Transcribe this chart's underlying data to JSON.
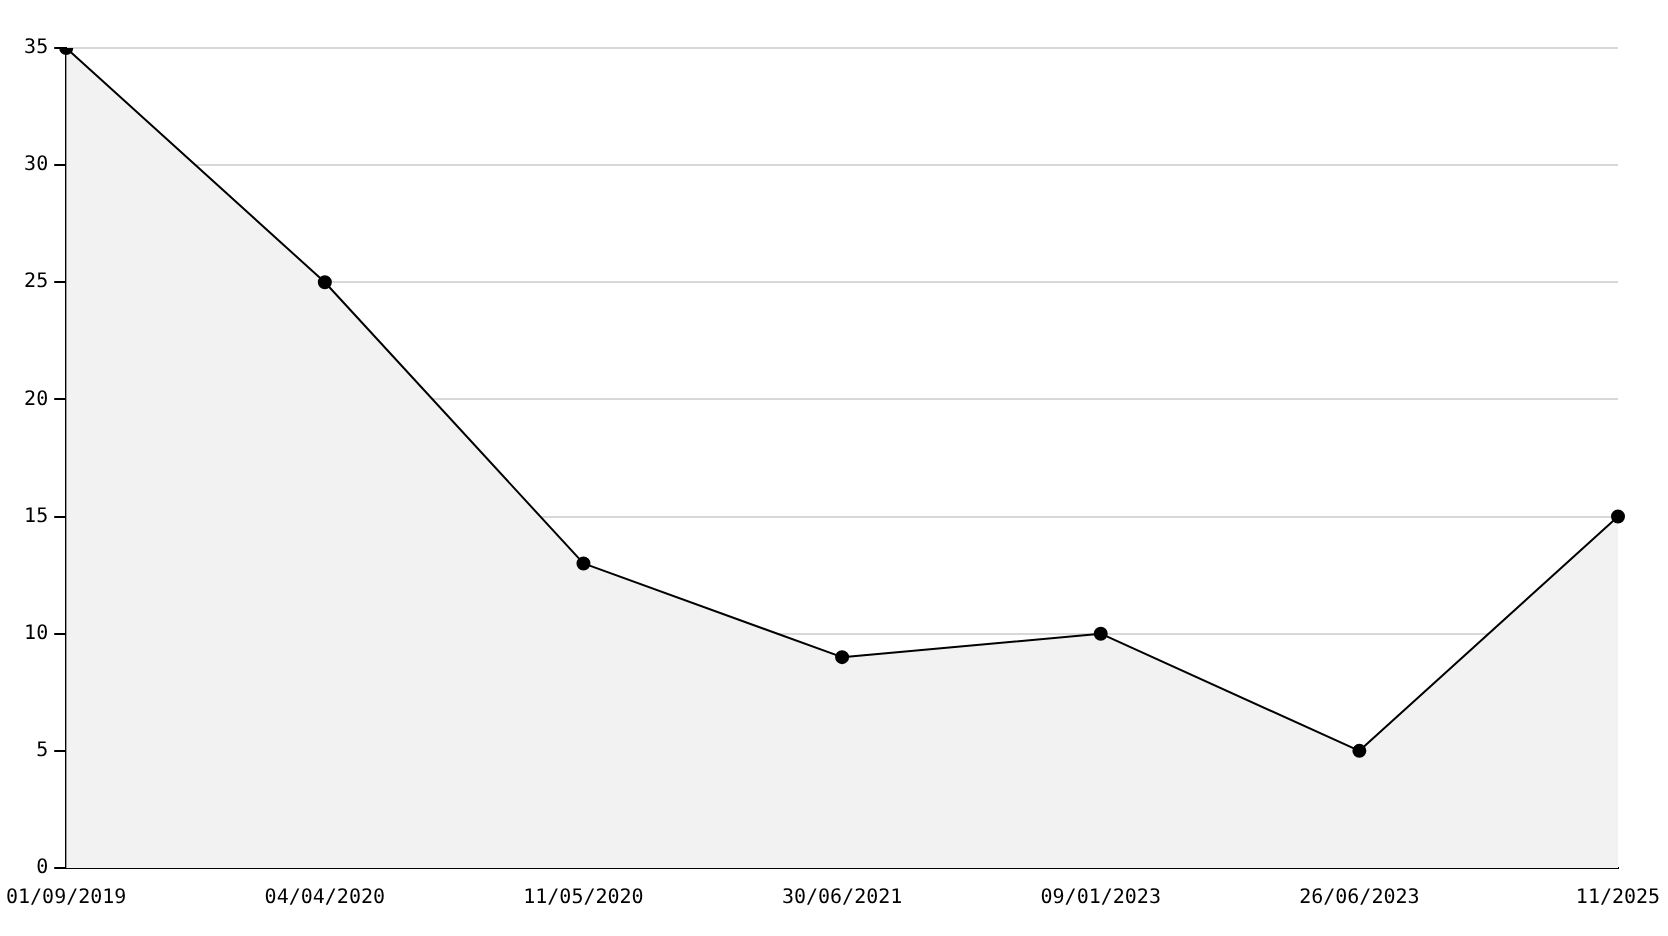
{
  "chart_data": {
    "type": "area",
    "categories": [
      "01/09/2019",
      "04/04/2020",
      "11/05/2020",
      "30/06/2021",
      "09/01/2023",
      "26/06/2023",
      "11/2025"
    ],
    "series": [
      {
        "color": "#000000",
        "values": [
          35,
          25,
          13,
          9,
          10,
          5,
          15
        ]
      }
    ],
    "ylim": [
      0,
      35
    ],
    "yticks": [
      0,
      5,
      10,
      15,
      20,
      25,
      30,
      35
    ],
    "grid": "y",
    "legend": false,
    "marker": "circle",
    "line_style": "solid"
  }
}
